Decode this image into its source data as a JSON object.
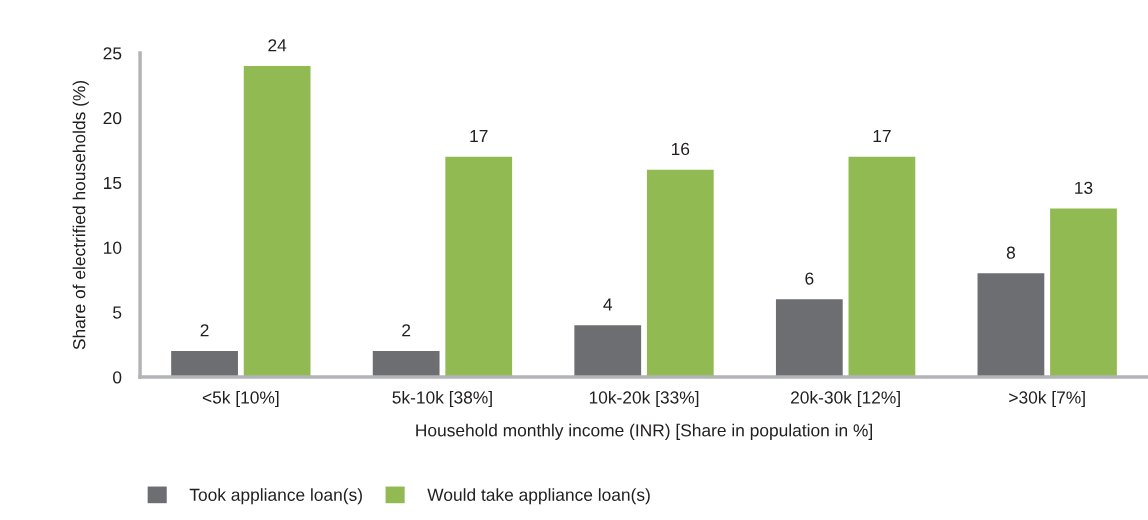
{
  "chart_data": {
    "type": "bar",
    "xlabel": "Household monthly income (INR) [Share in population in %]",
    "ylabel": "Share of electrified households (%)",
    "categories": [
      "<5k [10%]",
      "5k-10k [38%]",
      "10k-20k [33%]",
      "20k-30k [12%]",
      ">30k [7%]"
    ],
    "series": [
      {
        "name": "Took appliance loan(s)",
        "color": "#6d6e71",
        "values": [
          2,
          2,
          4,
          6,
          8
        ]
      },
      {
        "name": "Would take appliance loan(s)",
        "color": "#91bb52",
        "values": [
          24,
          17,
          16,
          17,
          13
        ]
      }
    ],
    "ylim": [
      0,
      25
    ],
    "yticks": [
      0,
      5,
      10,
      15,
      20,
      25
    ],
    "grid": false,
    "legend": "bottom",
    "data_labels": true
  }
}
